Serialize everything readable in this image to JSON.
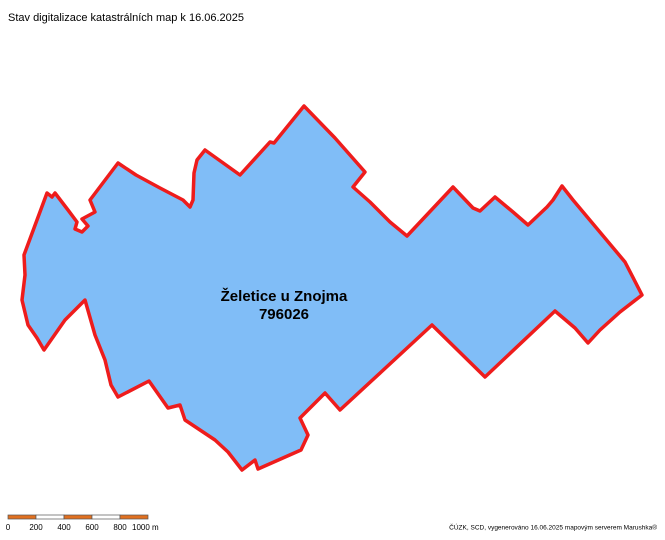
{
  "header": {
    "title": "Stav digitalizace katastrálních map k 16.06.2025"
  },
  "area": {
    "name": "Želetice u Znojma",
    "code": "796026"
  },
  "scale_bar": {
    "labels": [
      "0",
      "200",
      "400",
      "600",
      "800",
      "1000 m"
    ]
  },
  "footer": {
    "credits": "ČÚZK, SCD, vygenerováno 16.06.2025 mapovým serverem Marushka®"
  }
}
